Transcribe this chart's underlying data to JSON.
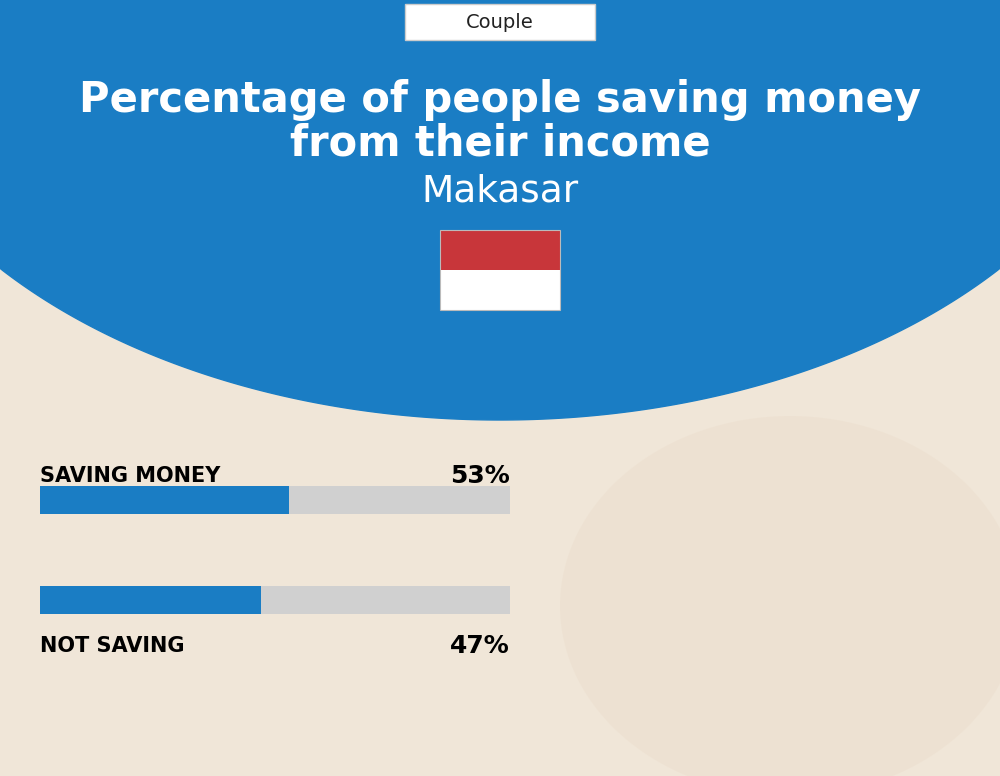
{
  "title_line1": "Percentage of people saving money",
  "title_line2": "from their income",
  "city": "Makasar",
  "category_label": "Couple",
  "saving_label": "SAVING MONEY",
  "saving_value": 53,
  "saving_pct_text": "53%",
  "not_saving_label": "NOT SAVING",
  "not_saving_value": 47,
  "not_saving_pct_text": "47%",
  "bg_color": "#f0e6d8",
  "blue_color": "#1a7dc4",
  "bar_bg_color": "#d0d0d0",
  "header_blue": "#1a7dc4",
  "title_color": "#ffffff",
  "city_color": "#ffffff",
  "label_color": "#000000",
  "flag_red": "#c8363a",
  "flag_white": "#ffffff",
  "couple_box_color": "#ffffff",
  "couple_text_color": "#222222"
}
